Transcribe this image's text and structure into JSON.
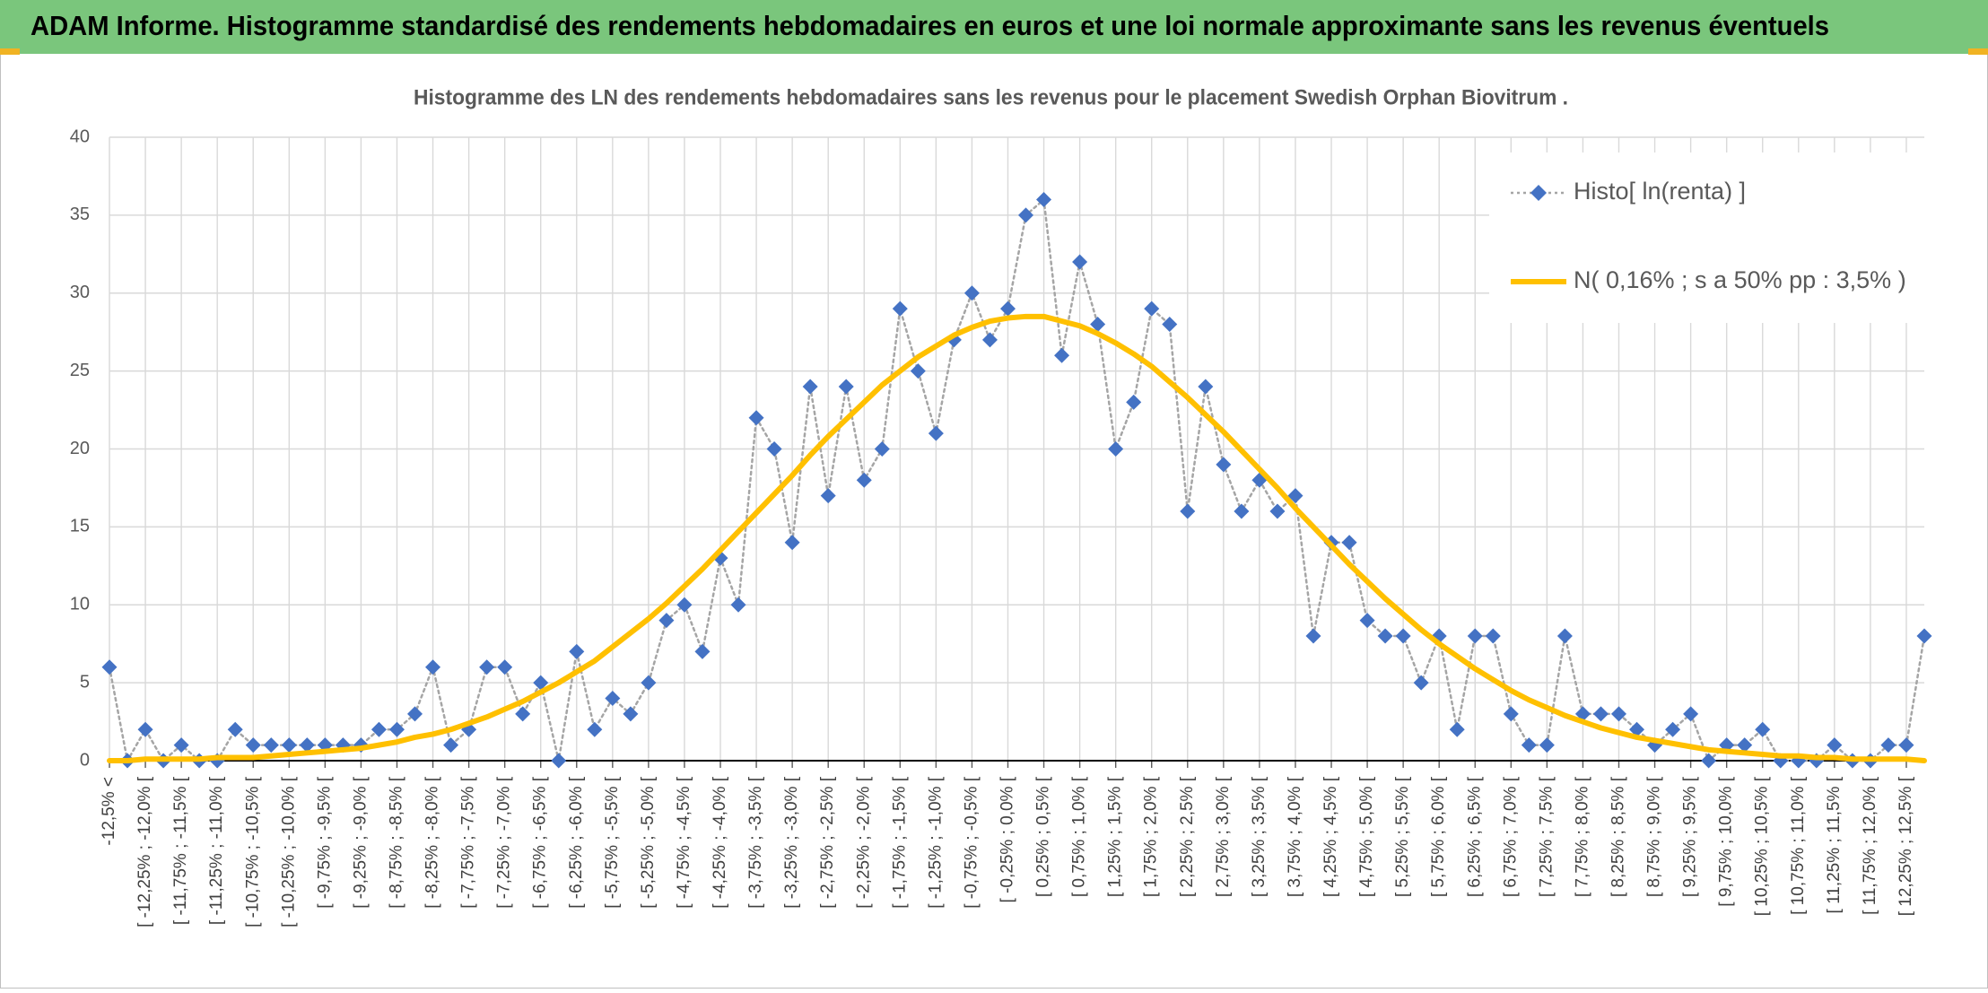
{
  "chart_data": {
    "type": "line",
    "title": "ADAM Informe. Histogramme standardisé des rendements hebdomadaires en euros et une loi normale approximante sans les revenus éventuels",
    "subtitle": "Histogramme des LN des rendements hebdomadaires sans les revenus pour le placement Swedish Orphan Biovitrum .",
    "categories": [
      "-12,5% <",
      null,
      "[ -12,25% ; -12,0% [",
      null,
      "[ -11,75% ; -11,5% [",
      null,
      "[ -11,25% ; -11,0% [",
      null,
      "[ -10,75% ; -10,5% [",
      null,
      "[ -10,25% ; -10,0% [",
      null,
      "[ -9,75% ; -9,5% [",
      null,
      "[ -9,25% ; -9,0% [",
      null,
      "[ -8,75% ; -8,5% [",
      null,
      "[ -8,25% ; -8,0% [",
      null,
      "[ -7,75% ; -7,5% [",
      null,
      "[ -7,25% ; -7,0% [",
      null,
      "[ -6,75% ; -6,5% [",
      null,
      "[ -6,25% ; -6,0% [",
      null,
      "[ -5,75% ; -5,5% [",
      null,
      "[ -5,25% ; -5,0% [",
      null,
      "[ -4,75% ; -4,5% [",
      null,
      "[ -4,25% ; -4,0% [",
      null,
      "[ -3,75% ; -3,5% [",
      null,
      "[ -3,25% ; -3,0% [",
      null,
      "[ -2,75% ; -2,5% [",
      null,
      "[ -2,25% ; -2,0% [",
      null,
      "[ -1,75% ; -1,5% [",
      null,
      "[ -1,25% ; -1,0% [",
      null,
      "[ -0,75% ; -0,5% [",
      null,
      "[ -0,25% ; 0,0% [",
      null,
      "[ 0,25% ; 0,5% [",
      null,
      "[ 0,75% ; 1,0% [",
      null,
      "[ 1,25% ; 1,5% [",
      null,
      "[ 1,75% ; 2,0% [",
      null,
      "[ 2,25% ; 2,5% [",
      null,
      "[ 2,75% ; 3,0% [",
      null,
      "[ 3,25% ; 3,5% [",
      null,
      "[ 3,75% ; 4,0% [",
      null,
      "[ 4,25% ; 4,5% [",
      null,
      "[ 4,75% ; 5,0% [",
      null,
      "[ 5,25% ; 5,5% [",
      null,
      "[ 5,75% ; 6,0% [",
      null,
      "[ 6,25% ; 6,5% [",
      null,
      "[ 6,75% ; 7,0% [",
      null,
      "[ 7,25% ; 7,5% [",
      null,
      "[ 7,75% ; 8,0% [",
      null,
      "[ 8,25% ; 8,5% [",
      null,
      "[ 8,75% ; 9,0% [",
      null,
      "[ 9,25% ; 9,5% [",
      null,
      "[ 9,75% ; 10,0% [",
      null,
      "[ 10,25% ; 10,5% [",
      null,
      "[ 10,75% ; 11,0% [",
      null,
      "[ 11,25% ; 11,5% [",
      null,
      "[ 11,75% ; 12,0% [",
      null,
      "[ 12,25% ; 12,5% [",
      null
    ],
    "series": [
      {
        "name": "Histo[ ln(renta) ]",
        "color": "#4472c4",
        "line_color": "#a5a5a5",
        "line_style": "dotted",
        "marker": "diamond",
        "values": [
          6,
          0,
          2,
          0,
          1,
          0,
          0,
          2,
          1,
          1,
          1,
          1,
          1,
          1,
          1,
          2,
          2,
          3,
          6,
          1,
          2,
          6,
          6,
          3,
          5,
          0,
          7,
          2,
          4,
          3,
          5,
          9,
          10,
          7,
          13,
          10,
          22,
          20,
          14,
          24,
          17,
          24,
          18,
          20,
          29,
          25,
          21,
          27,
          30,
          27,
          29,
          35,
          36,
          26,
          32,
          28,
          20,
          23,
          29,
          28,
          16,
          24,
          19,
          16,
          18,
          16,
          17,
          8,
          14,
          14,
          9,
          8,
          8,
          5,
          8,
          2,
          8,
          8,
          3,
          1,
          1,
          8,
          3,
          3,
          3,
          2,
          1,
          2,
          3,
          0,
          1,
          1,
          2,
          0,
          0,
          0,
          1,
          0,
          0,
          1,
          1,
          8
        ]
      },
      {
        "name": "N( 0,16% ; s a 50% pp : 3,5% )",
        "color": "#ffc000",
        "line_color": "#ffc000",
        "line_style": "solid",
        "marker": "none",
        "values": [
          0.0,
          0.0,
          0.1,
          0.1,
          0.1,
          0.1,
          0.2,
          0.2,
          0.2,
          0.3,
          0.4,
          0.5,
          0.6,
          0.7,
          0.8,
          1.0,
          1.2,
          1.5,
          1.7,
          2.0,
          2.4,
          2.8,
          3.3,
          3.8,
          4.4,
          5.0,
          5.7,
          6.4,
          7.3,
          8.2,
          9.1,
          10.1,
          11.2,
          12.3,
          13.5,
          14.7,
          15.9,
          17.1,
          18.3,
          19.6,
          20.8,
          21.9,
          23.0,
          24.1,
          25.0,
          25.9,
          26.6,
          27.3,
          27.8,
          28.2,
          28.4,
          28.5,
          28.5,
          28.2,
          27.9,
          27.4,
          26.8,
          26.1,
          25.3,
          24.3,
          23.3,
          22.2,
          21.1,
          19.9,
          18.7,
          17.5,
          16.2,
          15.0,
          13.8,
          12.6,
          11.5,
          10.4,
          9.4,
          8.4,
          7.5,
          6.7,
          5.9,
          5.2,
          4.5,
          3.9,
          3.4,
          2.9,
          2.5,
          2.1,
          1.8,
          1.5,
          1.3,
          1.1,
          0.9,
          0.7,
          0.6,
          0.5,
          0.4,
          0.3,
          0.3,
          0.2,
          0.2,
          0.1,
          0.1,
          0.1,
          0.1,
          0.0
        ]
      }
    ],
    "ylim": [
      0,
      40
    ],
    "yticks": [
      0,
      5,
      10,
      15,
      20,
      25,
      30,
      35,
      40
    ],
    "grid": true,
    "legend": "top-right"
  }
}
